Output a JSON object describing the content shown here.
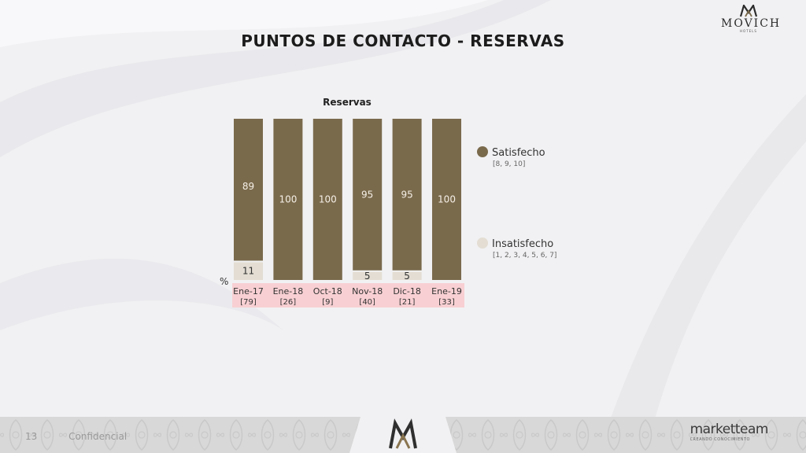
{
  "header": {
    "title": "PUNTOS DE CONTACTO - RESERVAS",
    "logo_text": "MOVICH",
    "logo_subtext": "HOTELS"
  },
  "colors": {
    "satisfecho": "#7a6a4c",
    "insatisfecho": "#e3ddd3",
    "label_band": "#f8d0d3",
    "background": "#f1f1f3"
  },
  "chart_data": {
    "type": "bar",
    "stacked": true,
    "title": "Reservas",
    "unit_label": "%",
    "categories": [
      "Ene-17",
      "Ene-18",
      "Oct-18",
      "Nov-18",
      "Dic-18",
      "Ene-19"
    ],
    "category_bases": [
      "[79]",
      "[26]",
      "[9]",
      "[40]",
      "[21]",
      "[33]"
    ],
    "ylim": [
      0,
      100
    ],
    "grid": false,
    "legend_position": "right",
    "series": [
      {
        "name": "Insatisfecho",
        "sublabel": "[1, 2, 3, 4, 5, 6, 7]",
        "values": [
          11,
          0,
          0,
          5,
          5,
          0
        ]
      },
      {
        "name": "Satisfecho",
        "sublabel": "[8, 9, 10]",
        "values": [
          89,
          100,
          100,
          95,
          95,
          100
        ]
      }
    ]
  },
  "footer": {
    "page_number": "13",
    "confidential": "Confidencial",
    "brand": "marketteam",
    "brand_tagline": "CREANDO CONOCIMIENTO"
  }
}
